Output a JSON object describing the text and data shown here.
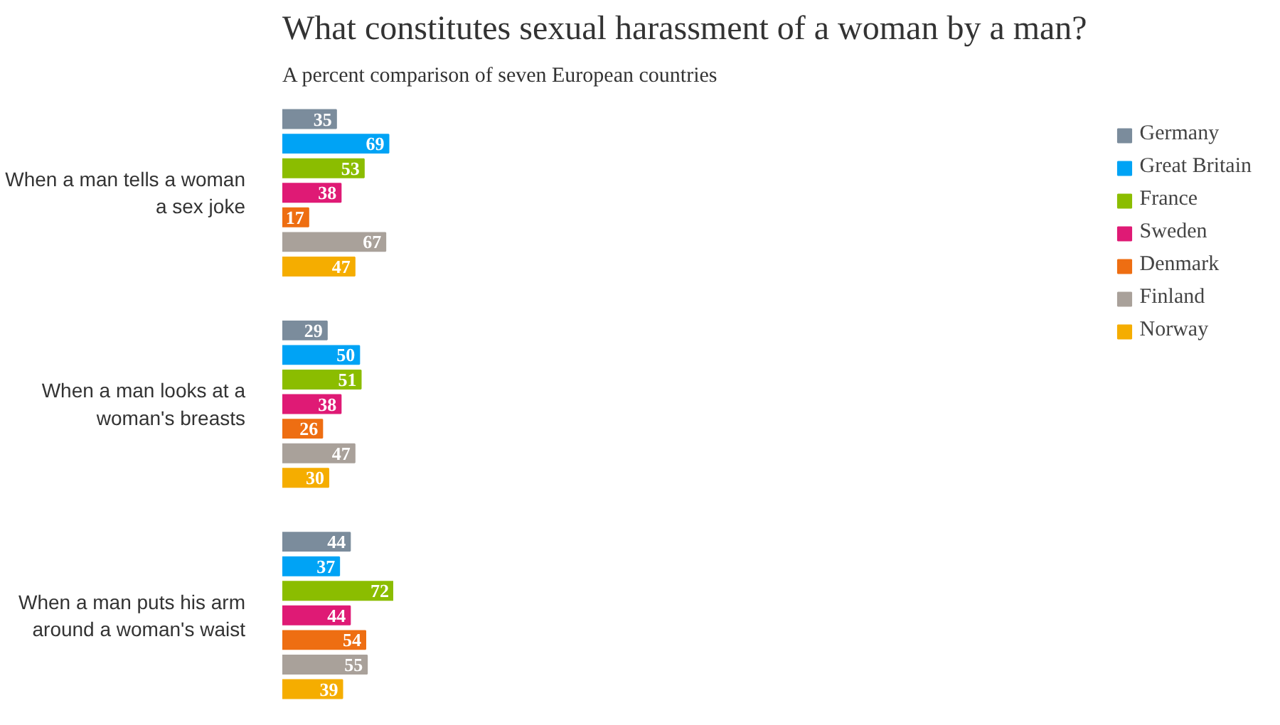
{
  "chart_data": {
    "type": "bar",
    "orientation": "horizontal",
    "title": "What constitutes sexual harassment of a woman by a man?",
    "subtitle": "A percent comparison of seven European countries",
    "categories": [
      "When a man tells a woman a sex joke",
      "When a man looks at a woman's breasts",
      "When a man puts his arm around a woman's waist"
    ],
    "series": [
      {
        "name": "Germany",
        "color": "#7b8c9c",
        "values": [
          35,
          29,
          44
        ]
      },
      {
        "name": "Great Britain",
        "color": "#00a3f5",
        "values": [
          69,
          50,
          37
        ]
      },
      {
        "name": "France",
        "color": "#8bbd00",
        "values": [
          53,
          51,
          72
        ]
      },
      {
        "name": "Sweden",
        "color": "#df1a75",
        "values": [
          38,
          38,
          44
        ]
      },
      {
        "name": "Denmark",
        "color": "#ee6e12",
        "values": [
          17,
          26,
          54
        ]
      },
      {
        "name": "Finland",
        "color": "#a9a19a",
        "values": [
          67,
          47,
          55
        ]
      },
      {
        "name": "Norway",
        "color": "#f5ad00",
        "values": [
          47,
          30,
          39
        ]
      }
    ],
    "data_labels": true,
    "legend": "right",
    "grid": false
  }
}
